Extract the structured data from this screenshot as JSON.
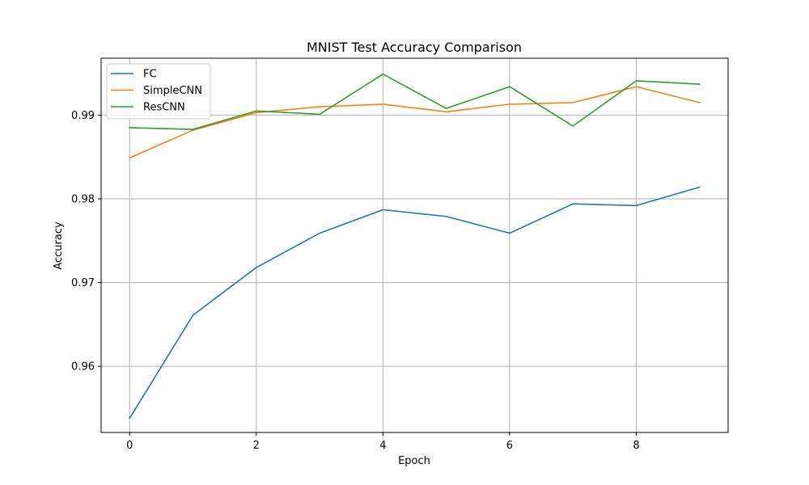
{
  "chart_data": {
    "type": "line",
    "title": "MNIST Test Accuracy Comparison",
    "xlabel": "Epoch",
    "ylabel": "Accuracy",
    "xlim": [
      -0.45,
      9.45
    ],
    "ylim": [
      0.9521,
      0.9968
    ],
    "xticks": [
      0,
      2,
      4,
      6,
      8
    ],
    "yticks": [
      0.96,
      0.97,
      0.98,
      0.99
    ],
    "xtick_labels": [
      "0",
      "2",
      "4",
      "6",
      "8"
    ],
    "ytick_labels": [
      "0.96",
      "0.97",
      "0.98",
      "0.99"
    ],
    "grid": true,
    "legend_position": "top-left",
    "x": [
      0,
      1,
      2,
      3,
      4,
      5,
      6,
      7,
      8,
      9
    ],
    "series": [
      {
        "name": "FC",
        "color": "#1f77b4",
        "values": [
          0.9538,
          0.9661,
          0.9718,
          0.9759,
          0.9787,
          0.9779,
          0.9759,
          0.9794,
          0.9792,
          0.9814
        ]
      },
      {
        "name": "SimpleCNN",
        "color": "#ff7f0e",
        "values": [
          0.9849,
          0.9882,
          0.9903,
          0.991,
          0.9913,
          0.9904,
          0.9913,
          0.9915,
          0.9934,
          0.9915
        ]
      },
      {
        "name": "ResCNN",
        "color": "#2ca02c",
        "values": [
          0.9885,
          0.9883,
          0.9905,
          0.9901,
          0.9949,
          0.9908,
          0.9934,
          0.9887,
          0.9941,
          0.9937
        ]
      }
    ]
  }
}
